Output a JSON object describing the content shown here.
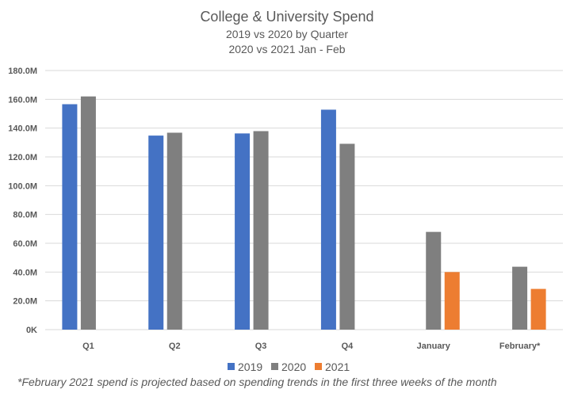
{
  "chart_data": {
    "type": "bar",
    "title": "College & University Spend",
    "subtitles": [
      "2019 vs 2020 by Quarter",
      "2020 vs 2021 Jan - Feb"
    ],
    "categories": [
      "Q1",
      "Q2",
      "Q3",
      "Q4",
      "January",
      "February*"
    ],
    "series": [
      {
        "name": "2019",
        "color": "#4472C4",
        "values": [
          156.6,
          134.8,
          136.3,
          152.8,
          null,
          null
        ]
      },
      {
        "name": "2020",
        "color": "#7F7F7F",
        "values": [
          162.0,
          136.8,
          137.9,
          129.1,
          67.9,
          43.7
        ]
      },
      {
        "name": "2021",
        "color": "#ED7D31",
        "values": [
          null,
          null,
          null,
          null,
          40.0,
          28.3
        ]
      }
    ],
    "unit": "M",
    "ylim": [
      0,
      180
    ],
    "yticks": [
      0,
      20,
      40,
      60,
      80,
      100,
      120,
      140,
      160,
      180
    ],
    "ytick_labels": [
      "0K",
      "20.0M",
      "40.0M",
      "60.0M",
      "80.0M",
      "100.0M",
      "120.0M",
      "140.0M",
      "160.0M",
      "180.0M"
    ],
    "grid": true,
    "legend": "bottom",
    "footnote": "*February 2021 spend is projected based on spending trends in the first three weeks of the month"
  }
}
